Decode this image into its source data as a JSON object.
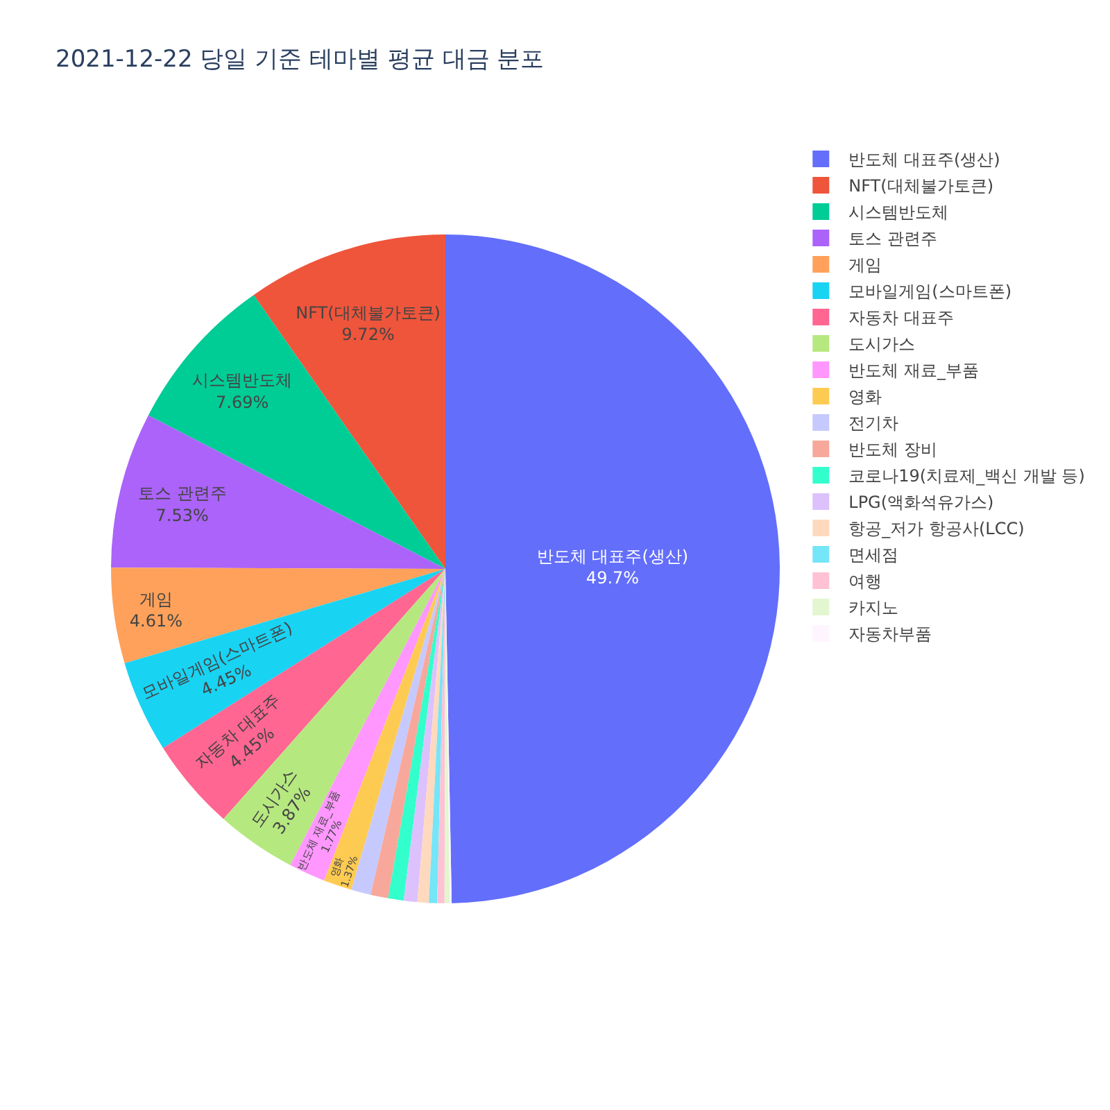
{
  "chart_data": {
    "type": "pie",
    "title": "2021-12-22 당일 기준 테마별 평균 대금 분포",
    "categories": [
      "반도체 대표주(생산)",
      "NFT(대체불가토큰)",
      "시스템반도체",
      "토스 관련주",
      "게임",
      "모바일게임(스마트폰)",
      "자동차 대표주",
      "도시가스",
      "반도체 재료_부품",
      "영화",
      "전기차",
      "반도체 장비",
      "코로나19(치료제_백신 개발 등)",
      "LPG(액화석유가스)",
      "항공_저가 항공사(LCC)",
      "면세점",
      "여행",
      "카지노",
      "자동차부품"
    ],
    "values": [
      49.7,
      9.72,
      7.69,
      7.53,
      4.61,
      4.45,
      4.45,
      3.87,
      1.77,
      1.37,
      0.95,
      0.85,
      0.75,
      0.65,
      0.55,
      0.4,
      0.35,
      0.25,
      0.09
    ],
    "colors": [
      "#636efa",
      "#ef553b",
      "#00cc96",
      "#ab63fa",
      "#ffa15a",
      "#19d3f3",
      "#ff6692",
      "#b6e880",
      "#ff97ff",
      "#fecb52",
      "#c6c9fd",
      "#f7a89a",
      "#33ffcc",
      "#dcc1fd",
      "#ffd9bd",
      "#75e5f8",
      "#ffc2d4",
      "#e2f6d0",
      "#fef5fe"
    ],
    "value_labels": [
      "49.7%",
      "9.72%",
      "7.69%",
      "7.53%",
      "4.61%",
      "4.45%",
      "4.45%",
      "3.87%",
      "1.77%",
      "1.37%",
      null,
      null,
      null,
      null,
      null,
      null,
      null,
      null,
      null
    ],
    "legend": "top right"
  }
}
